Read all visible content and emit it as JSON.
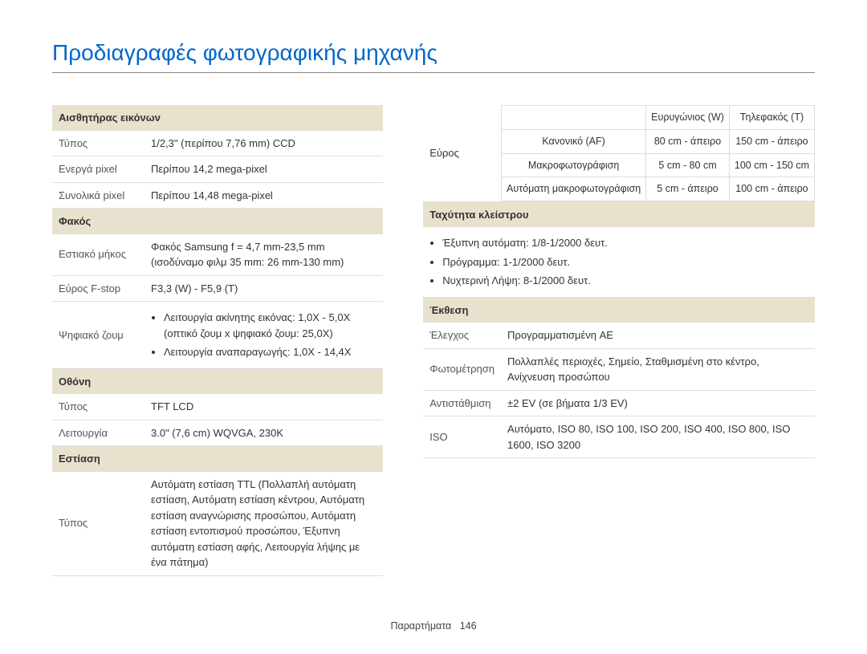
{
  "title": "Προδιαγραφές φωτογραφικής μηχανής",
  "left": {
    "sensor": {
      "header": "Αισθητήρας εικόνων",
      "rows": [
        {
          "label": "Τύπος",
          "value": "1/2,3\" (περίπου 7,76 mm) CCD"
        },
        {
          "label": "Ενεργά pixel",
          "value": "Περίπου 14,2 mega-pixel"
        },
        {
          "label": "Συνολικά pixel",
          "value": "Περίπου 14,48 mega-pixel"
        }
      ]
    },
    "lens": {
      "header": "Φακός",
      "rows": [
        {
          "label": "Εστιακό μήκος",
          "value": "Φακός Samsung f = 4,7 mm-23,5 mm (ισοδύναμο φιλμ 35 mm: 26 mm-130 mm)"
        },
        {
          "label": "Εύρος F-stop",
          "value": "F3,3 (W) - F5,9 (T)"
        }
      ],
      "zoom": {
        "label": "Ψηφιακό ζουμ",
        "bullets": [
          "Λειτουργία ακίνητης εικόνας: 1,0X - 5,0X (οπτικό ζουμ x ψηφιακό ζουμ: 25,0X)",
          "Λειτουργία αναπαραγωγής: 1,0X - 14,4X"
        ]
      }
    },
    "screen": {
      "header": "Οθόνη",
      "rows": [
        {
          "label": "Τύπος",
          "value": "TFT LCD"
        },
        {
          "label": "Λειτουργία",
          "value": "3.0\" (7,6 cm) WQVGA, 230K"
        }
      ]
    },
    "focus": {
      "header": "Εστίαση",
      "rows": [
        {
          "label": "Τύπος",
          "value": "Αυτόματη εστίαση TTL (Πολλαπλή αυτόματη εστίαση, Αυτόματη εστίαση κέντρου, Αυτόματη εστίαση αναγνώρισης προσώπου, Αυτόματη εστίαση εντοπισμού προσώπου, Έξυπνη αυτόματη εστίαση αφής, Λειτουργία λήψης με ένα πάτημα)"
        }
      ]
    }
  },
  "right": {
    "range": {
      "label": "Εύρος",
      "grid": {
        "headers": [
          "",
          "Ευρυγώνιος (W)",
          "Τηλεφακός (T)"
        ],
        "rows": [
          [
            "Κανονικό (AF)",
            "80 cm - άπειρο",
            "150 cm - άπειρο"
          ],
          [
            "Μακροφωτογράφιση",
            "5 cm - 80 cm",
            "100 cm - 150 cm"
          ],
          [
            "Αυτόματη μακροφωτογράφιση",
            "5 cm - άπειρο",
            "100 cm - άπειρο"
          ]
        ]
      }
    },
    "shutter": {
      "header": "Ταχύτητα κλείστρου",
      "bullets": [
        "Έξυπνη αυτόματη: 1/8-1/2000 δευτ.",
        "Πρόγραμμα: 1-1/2000 δευτ.",
        "Νυχτερινή Λήψη: 8-1/2000 δευτ."
      ]
    },
    "exposure": {
      "header": "Έκθεση",
      "rows": [
        {
          "label": "Έλεγχος",
          "value": "Προγραμματισμένη AE"
        },
        {
          "label": "Φωτομέτρηση",
          "value": "Πολλαπλές περιοχές, Σημείο, Σταθμισμένη στο κέντρο, Ανίχνευση προσώπου"
        },
        {
          "label": "Αντιστάθμιση",
          "value": "±2 EV (σε βήματα 1/3 EV)"
        },
        {
          "label": "ISO",
          "value": "Αυτόματο, ISO 80, ISO 100, ISO 200, ISO 400, ISO 800, ISO 1600, ISO 3200"
        }
      ]
    }
  },
  "footer": {
    "label": "Παραρτήματα",
    "page": "146"
  }
}
